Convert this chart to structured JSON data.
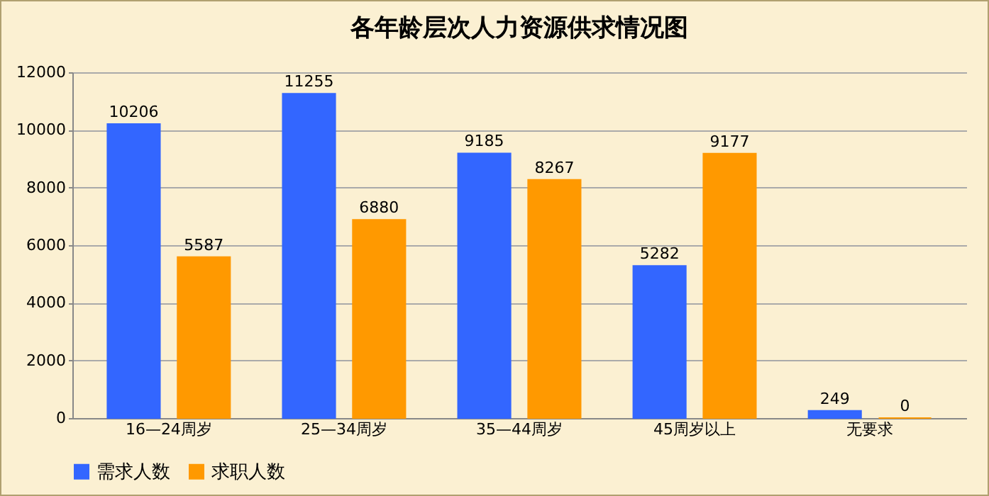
{
  "chart_data": {
    "type": "bar",
    "title": "各年龄层次人力资源供求情况图",
    "categories": [
      "16—24周岁",
      "25—34周岁",
      "35—44周岁",
      "45周岁以上",
      "无要求"
    ],
    "series": [
      {
        "name": "需求人数",
        "color": "#3366ff",
        "values": [
          10206,
          11255,
          9185,
          5282,
          249
        ]
      },
      {
        "name": "求职人数",
        "color": "#ff9900",
        "values": [
          5587,
          6880,
          8267,
          9177,
          0
        ]
      }
    ],
    "ylim": [
      0,
      12000
    ],
    "yticks": [
      0,
      2000,
      4000,
      6000,
      8000,
      10000,
      12000
    ],
    "grid": "y",
    "legend": "bottom",
    "data_labels": true
  }
}
